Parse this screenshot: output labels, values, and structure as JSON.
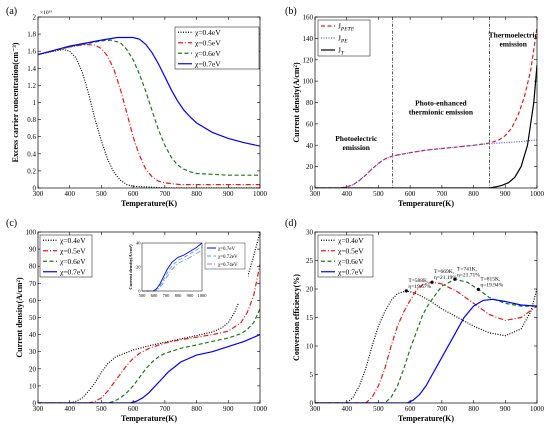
{
  "chart_data": [
    {
      "type": "line",
      "panel_label": "(a)",
      "xlabel": "Temperature(K)",
      "ylabel": "Excess carrier concentration(cm⁻³)",
      "multiplier": "×10¹⁵",
      "xlim": [
        300,
        1000
      ],
      "ylim": [
        0,
        2
      ],
      "xticks": [
        300,
        400,
        500,
        600,
        700,
        800,
        900,
        1000
      ],
      "yticks": [
        0,
        0.2,
        0.4,
        0.6,
        0.8,
        1,
        1.2,
        1.4,
        1.6,
        1.8,
        2
      ],
      "ytick_labels": [
        "0",
        "0.2",
        "0.4",
        "0.6",
        "0.8",
        "1",
        "1.2",
        "1.4",
        "1.6",
        "1.8",
        "2"
      ],
      "grid": false,
      "legend_position": "top-right",
      "series": [
        {
          "name": "χ=0.4eV",
          "color": "#000000",
          "style": "dotted",
          "x": [
            300,
            350,
            380,
            400,
            420,
            440,
            460,
            480,
            500,
            520,
            540,
            560,
            580,
            600,
            650,
            700,
            1000
          ],
          "y": [
            1.56,
            1.6,
            1.62,
            1.6,
            1.52,
            1.35,
            1.1,
            0.8,
            0.55,
            0.33,
            0.18,
            0.09,
            0.04,
            0.02,
            0.01,
            0.0,
            0.0
          ]
        },
        {
          "name": "χ=0.5eV",
          "color": "#e41a1c",
          "style": "dashdot",
          "x": [
            300,
            400,
            450,
            480,
            500,
            520,
            540,
            560,
            580,
            600,
            620,
            640,
            660,
            680,
            700,
            750,
            800,
            1000
          ],
          "y": [
            1.56,
            1.65,
            1.68,
            1.67,
            1.63,
            1.54,
            1.38,
            1.15,
            0.88,
            0.6,
            0.38,
            0.22,
            0.13,
            0.08,
            0.06,
            0.04,
            0.04,
            0.04
          ]
        },
        {
          "name": "χ=0.6eV",
          "color": "#1a7a1a",
          "style": "dashed",
          "x": [
            300,
            400,
            500,
            530,
            560,
            580,
            600,
            620,
            640,
            660,
            680,
            700,
            720,
            740,
            760,
            780,
            800,
            850,
            900,
            1000
          ],
          "y": [
            1.56,
            1.65,
            1.72,
            1.73,
            1.7,
            1.62,
            1.5,
            1.33,
            1.13,
            0.9,
            0.68,
            0.5,
            0.36,
            0.27,
            0.22,
            0.19,
            0.17,
            0.16,
            0.15,
            0.15
          ]
        },
        {
          "name": "χ=0.7eV",
          "color": "#0000ff",
          "style": "solid",
          "x": [
            300,
            400,
            500,
            550,
            580,
            600,
            620,
            640,
            660,
            680,
            700,
            720,
            740,
            760,
            780,
            800,
            850,
            900,
            950,
            1000
          ],
          "y": [
            1.56,
            1.66,
            1.73,
            1.76,
            1.76,
            1.76,
            1.74,
            1.68,
            1.58,
            1.45,
            1.3,
            1.15,
            1.02,
            0.91,
            0.83,
            0.76,
            0.65,
            0.58,
            0.53,
            0.49
          ]
        }
      ]
    },
    {
      "type": "line",
      "panel_label": "(b)",
      "xlabel": "Temperature(K)",
      "ylabel": "Current density(A/cm²)",
      "xlim": [
        300,
        1000
      ],
      "ylim": [
        0,
        160
      ],
      "xticks": [
        300,
        400,
        500,
        600,
        700,
        800,
        900,
        1000
      ],
      "yticks": [
        0,
        20,
        40,
        60,
        80,
        100,
        120,
        140,
        160
      ],
      "ytick_labels": [
        "0",
        "20",
        "40",
        "60",
        "80",
        "100",
        "120",
        "140",
        "160"
      ],
      "grid": false,
      "legend_position": "top-left",
      "vlines": [
        545,
        850
      ],
      "regions": [
        {
          "lines": [
            "Photoelectric",
            "emission"
          ],
          "x": 430,
          "y": 44
        },
        {
          "lines": [
            "Photo-enhanced",
            "thermionic emission"
          ],
          "x": 697,
          "y": 77
        },
        {
          "lines": [
            "Thermoelectric",
            "emission"
          ],
          "x": 925,
          "y": 141
        }
      ],
      "series": [
        {
          "name": "J",
          "subscript": "PETE",
          "color": "#e41a1c",
          "style": "dashed",
          "x": [
            300,
            380,
            400,
            420,
            440,
            460,
            480,
            500,
            520,
            545,
            600,
            650,
            700,
            750,
            800,
            850,
            880,
            900,
            920,
            940,
            960,
            980,
            1000
          ],
          "y": [
            0,
            0,
            1,
            3,
            7,
            12,
            18,
            23,
            27,
            30,
            33,
            35.5,
            37,
            38.5,
            40,
            42,
            45,
            49,
            56,
            68,
            85,
            110,
            150
          ]
        },
        {
          "name": "J",
          "subscript": "PE",
          "color": "#5555ff",
          "style": "dotted",
          "x": [
            300,
            380,
            400,
            420,
            440,
            460,
            480,
            500,
            520,
            545,
            600,
            650,
            700,
            750,
            800,
            850,
            900,
            950,
            1000
          ],
          "y": [
            0,
            0,
            1,
            3,
            7,
            12,
            18,
            23,
            27,
            30,
            33,
            35.5,
            37,
            38.5,
            40,
            41.5,
            42.5,
            43.5,
            45
          ]
        },
        {
          "name": "J",
          "subscript": "T",
          "color": "#000000",
          "style": "solid",
          "x": [
            300,
            850,
            870,
            890,
            910,
            930,
            950,
            970,
            990,
            1000
          ],
          "y": [
            0,
            0,
            1,
            2.5,
            5,
            10,
            20,
            40,
            80,
            115
          ]
        }
      ]
    },
    {
      "type": "line",
      "panel_label": "(c)",
      "xlabel": "Temperature(K)",
      "ylabel": "Current density(A/cm²)",
      "xlim": [
        300,
        1000
      ],
      "ylim": [
        0,
        100
      ],
      "xticks": [
        300,
        400,
        500,
        600,
        700,
        800,
        900,
        1000
      ],
      "yticks": [
        0,
        10,
        20,
        30,
        40,
        50,
        60,
        70,
        80,
        90,
        100
      ],
      "ytick_labels": [
        "0",
        "10",
        "20",
        "30",
        "40",
        "50",
        "60",
        "70",
        "80",
        "90",
        "100"
      ],
      "grid": false,
      "legend_position": "top-left",
      "series": [
        {
          "name": "χ=0.4eV",
          "color": "#000000",
          "style": "dotted",
          "x": [
            300,
            400,
            420,
            440,
            460,
            480,
            500,
            520,
            545,
            600,
            650,
            700,
            750,
            800,
            850,
            880,
            900,
            920,
            940,
            960,
            980,
            1000
          ],
          "y": [
            0,
            0,
            1,
            3,
            7,
            12,
            18,
            23,
            27,
            31,
            33.5,
            35.5,
            37.5,
            39.5,
            41.5,
            44,
            47,
            53,
            62,
            73,
            86,
            100
          ]
        },
        {
          "name": "χ=0.5eV",
          "color": "#e41a1c",
          "style": "dashdot",
          "x": [
            300,
            460,
            480,
            500,
            520,
            540,
            560,
            580,
            600,
            620,
            650,
            700,
            750,
            800,
            850,
            900,
            940,
            960,
            980,
            1000
          ],
          "y": [
            0,
            0,
            1,
            3,
            7,
            12,
            17,
            22,
            26,
            29,
            32,
            35,
            37,
            38.5,
            40,
            42,
            47,
            53,
            63,
            81
          ]
        },
        {
          "name": "χ=0.6eV",
          "color": "#1a7a1a",
          "style": "dashed",
          "x": [
            300,
            520,
            540,
            560,
            580,
            600,
            620,
            640,
            660,
            680,
            700,
            750,
            800,
            850,
            900,
            940,
            960,
            980,
            1000
          ],
          "y": [
            0,
            0,
            1,
            3,
            6,
            10,
            15,
            20,
            24,
            27,
            29,
            32,
            34,
            36,
            38,
            40.5,
            43,
            47,
            55
          ]
        },
        {
          "name": "χ=0.7eV",
          "color": "#0000ff",
          "style": "solid",
          "x": [
            300,
            590,
            610,
            630,
            650,
            670,
            690,
            710,
            730,
            750,
            800,
            850,
            900,
            950,
            1000
          ],
          "y": [
            0,
            0,
            1,
            3,
            6,
            10,
            14,
            18,
            21,
            24,
            28,
            30,
            33,
            36,
            40
          ]
        }
      ],
      "inset": {
        "ylabel": "Current density(A/cm²)",
        "xlim": [
          500,
          1000
        ],
        "ylim": [
          0,
          40
        ],
        "xticks": [
          500,
          600,
          700,
          800,
          900,
          1000
        ],
        "yticks": [
          0,
          20,
          40
        ],
        "ytick_labels": [
          "0",
          "20",
          "40"
        ],
        "series": [
          {
            "name": "χ=0.7eV",
            "color": "#0000ff",
            "style": "solid",
            "x": [
              500,
              590,
              610,
              630,
              650,
              670,
              690,
              710,
              730,
              750,
              800,
              850,
              900,
              950,
              1000
            ],
            "y": [
              0,
              0,
              1,
              3,
              6,
              10,
              14,
              18,
              21,
              24,
              28,
              30,
              33,
              36,
              40
            ]
          },
          {
            "name": "χ=0.72eV",
            "color": "#33aaff",
            "style": "dashed",
            "x": [
              500,
              600,
              620,
              640,
              660,
              680,
              700,
              720,
              740,
              760,
              800,
              850,
              900,
              950,
              1000
            ],
            "y": [
              0,
              0,
              1,
              3,
              6,
              9.5,
              13,
              16.5,
              19.5,
              22,
              25.5,
              28,
              31,
              34,
              37
            ]
          },
          {
            "name": "χ=0.74eV",
            "color": "#8888cc",
            "style": "dashdot",
            "x": [
              500,
              610,
              630,
              650,
              670,
              690,
              710,
              730,
              750,
              770,
              800,
              850,
              900,
              950,
              1000
            ],
            "y": [
              0,
              0,
              1,
              3,
              5.5,
              9,
              12,
              15,
              18,
              20,
              23,
              25.5,
              28,
              31,
              34
            ]
          }
        ]
      }
    },
    {
      "type": "line",
      "panel_label": "(d)",
      "xlabel": "Temperature(K)",
      "ylabel": "Conversion efficiency(%)",
      "xlim": [
        300,
        1000
      ],
      "ylim": [
        0,
        30
      ],
      "xticks": [
        300,
        400,
        500,
        600,
        700,
        800,
        900,
        1000
      ],
      "yticks": [
        0,
        5,
        10,
        15,
        20,
        25,
        30
      ],
      "ytick_labels": [
        "0",
        "5",
        "10",
        "15",
        "20",
        "25",
        "30"
      ],
      "grid": false,
      "legend_position": "top-left",
      "series": [
        {
          "name": "χ=0.4eV",
          "color": "#000000",
          "style": "dotted",
          "x": [
            300,
            400,
            420,
            440,
            460,
            480,
            500,
            520,
            540,
            560,
            588,
            620,
            660,
            700,
            750,
            800,
            850,
            900,
            950,
            980,
            1000
          ],
          "y": [
            0,
            0,
            1,
            3,
            6,
            10,
            13.5,
            16,
            18,
            19.2,
            19.67,
            19.2,
            18,
            16.5,
            15,
            13.5,
            12.3,
            11.8,
            13,
            16,
            20
          ]
        },
        {
          "name": "χ=0.5eV",
          "color": "#e41a1c",
          "style": "dashdot",
          "x": [
            300,
            460,
            480,
            500,
            520,
            540,
            560,
            580,
            600,
            620,
            640,
            669,
            700,
            750,
            800,
            850,
            900,
            950,
            1000
          ],
          "y": [
            0,
            0,
            1,
            3,
            6,
            10,
            13.5,
            16,
            18,
            19.8,
            20.8,
            21.19,
            20.9,
            19.5,
            17.5,
            15.5,
            14.5,
            15,
            17
          ]
        },
        {
          "name": "χ=0.6eV",
          "color": "#1a7a1a",
          "style": "dashed",
          "x": [
            300,
            520,
            540,
            560,
            580,
            600,
            620,
            640,
            660,
            680,
            700,
            741,
            780,
            815,
            850,
            900,
            950,
            1000
          ],
          "y": [
            0,
            0,
            1,
            3,
            6,
            9.5,
            12.5,
            15.5,
            17.5,
            19,
            20.5,
            21.71,
            21.2,
            19.94,
            18.5,
            17.5,
            17,
            17
          ]
        },
        {
          "name": "χ=0.7eV",
          "color": "#0000ff",
          "style": "solid",
          "x": [
            300,
            590,
            610,
            630,
            650,
            670,
            690,
            710,
            730,
            750,
            770,
            800,
            830,
            860,
            900,
            950,
            1000
          ],
          "y": [
            0,
            0,
            0.5,
            1.5,
            3,
            5,
            7,
            9,
            11,
            13,
            15,
            17,
            18,
            18.2,
            17.8,
            17.2,
            17
          ]
        }
      ],
      "annotations": [
        {
          "lines": [
            "T=588K,",
            "η=19.67%"
          ],
          "x": 588,
          "y": 19.67
        },
        {
          "lines": [
            "T=669K,",
            "η=21.19%"
          ],
          "x": 669,
          "y": 21.19
        },
        {
          "lines": [
            "T=741K,",
            "η=21.71%"
          ],
          "x": 741,
          "y": 21.71
        },
        {
          "lines": [
            "T=815K,",
            "η=19.94%"
          ],
          "x": 815,
          "y": 19.94
        }
      ]
    }
  ]
}
